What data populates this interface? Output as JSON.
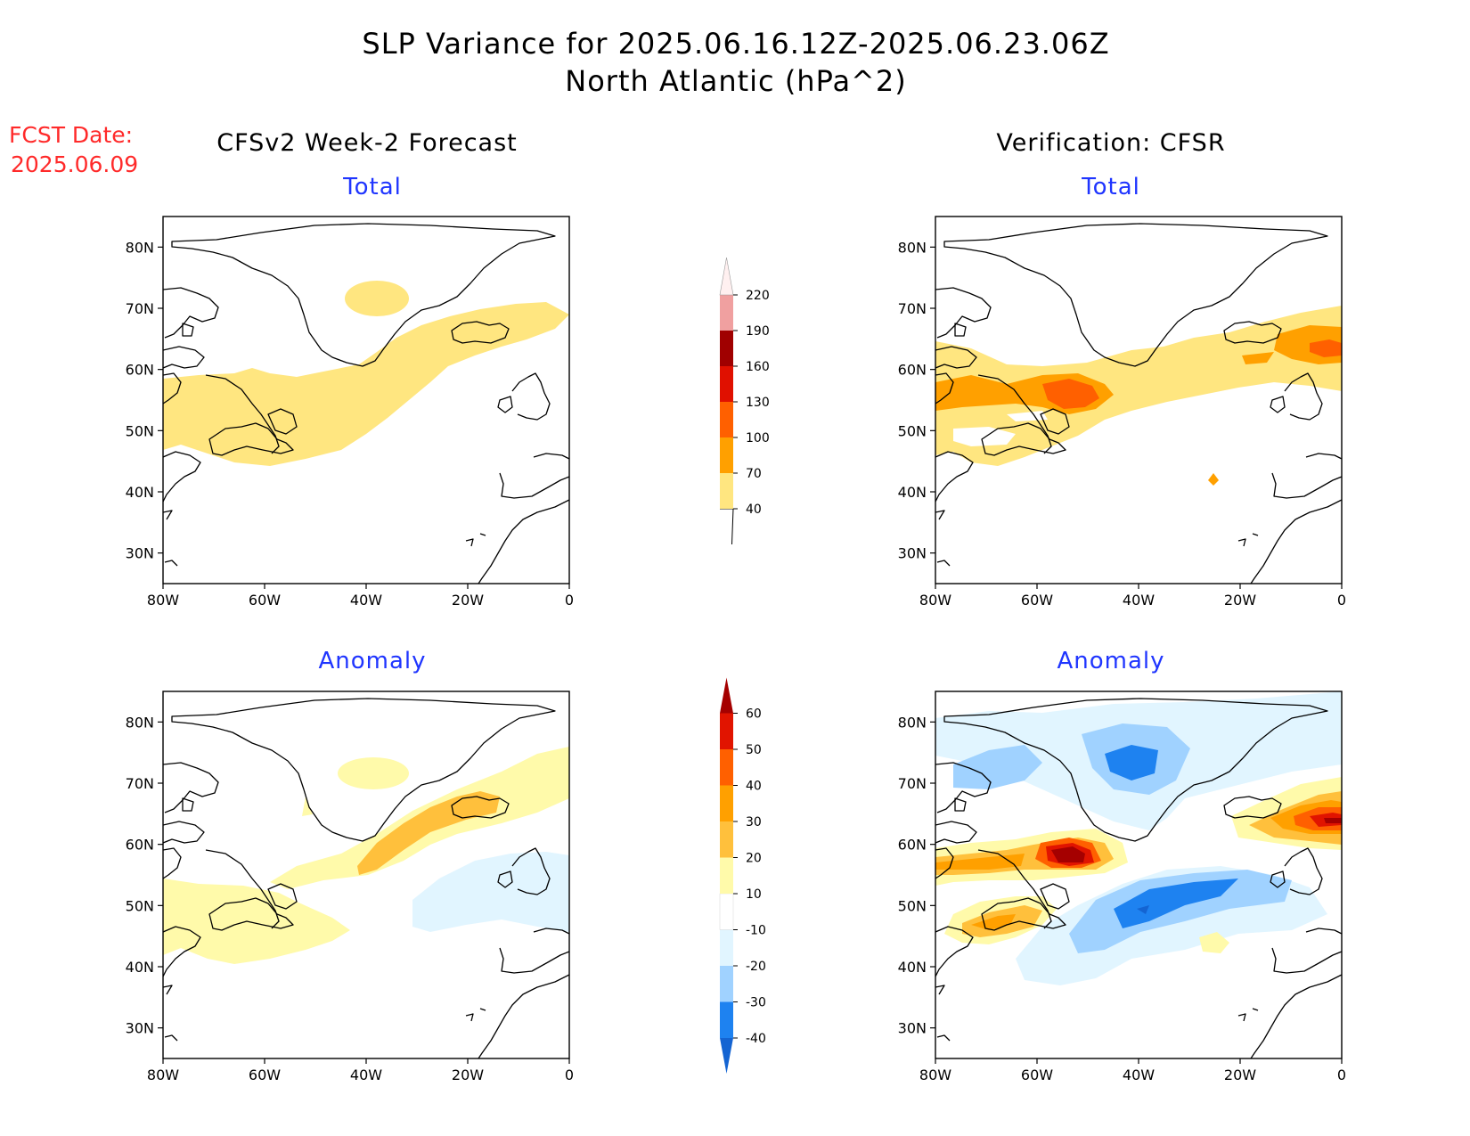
{
  "title": {
    "line1": "SLP Variance for 2025.06.16.12Z-2025.06.23.06Z",
    "line2": "North Atlantic (hPa^2)"
  },
  "fcst_date": {
    "label": "FCST Date:",
    "value": "2025.06.09"
  },
  "columns": {
    "left": "CFSv2 Week-2 Forecast",
    "right": "Verification: CFSR"
  },
  "panels": {
    "total": "Total",
    "anomaly": "Anomaly"
  },
  "axes": {
    "lon_ticks": [
      "80W",
      "60W",
      "40W",
      "20W",
      "0"
    ],
    "lat_ticks": [
      "80N",
      "70N",
      "60N",
      "50N",
      "40N",
      "30N"
    ],
    "lon_range": [
      -80,
      0
    ],
    "lat_range": [
      25,
      85
    ]
  },
  "colorbars": {
    "total": {
      "levels": [
        "40",
        "70",
        "100",
        "130",
        "160",
        "190",
        "220"
      ],
      "colors": [
        "#ffe680",
        "#ffa000",
        "#ff6000",
        "#e01000",
        "#a00000",
        "#f0a0a0",
        "#fff0f0"
      ]
    },
    "anomaly": {
      "levels": [
        "-40",
        "-30",
        "-20",
        "-10",
        "10",
        "20",
        "30",
        "40",
        "50",
        "60"
      ],
      "colors": [
        "#1464d2",
        "#1e82f0",
        "#a0d2ff",
        "#e1f5ff",
        "#ffffff",
        "#fffaaa",
        "#ffc03c",
        "#ffa000",
        "#ff6000",
        "#e11400",
        "#a50000"
      ]
    }
  },
  "chart_data": [
    {
      "type": "heatmap",
      "title": "Total",
      "subtitle": "CFSv2 Week-2 Forecast"
    },
    {
      "type": "heatmap",
      "title": "Total",
      "subtitle": "Verification: CFSR"
    },
    {
      "type": "heatmap",
      "title": "Anomaly",
      "subtitle": "CFSv2 Week-2 Forecast"
    },
    {
      "type": "heatmap",
      "title": "Anomaly",
      "subtitle": "Verification: CFSR"
    }
  ]
}
